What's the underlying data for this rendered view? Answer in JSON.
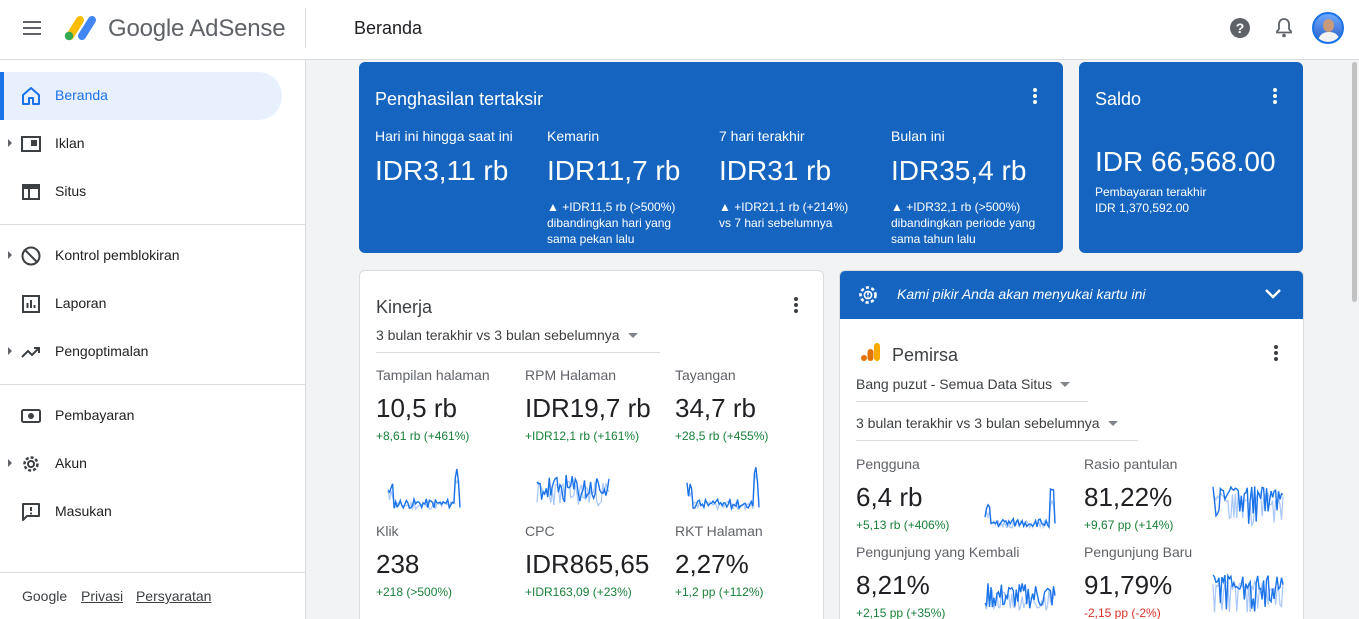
{
  "app": {
    "logo_google": "Google",
    "logo_product": "AdSense",
    "page_title": "Beranda"
  },
  "sidebar": {
    "items": [
      {
        "label": "Beranda",
        "icon": "home-icon",
        "active": true,
        "expandable": false
      },
      {
        "label": "Iklan",
        "icon": "ads-icon",
        "active": false,
        "expandable": true
      },
      {
        "label": "Situs",
        "icon": "sites-icon",
        "active": false,
        "expandable": false
      },
      {
        "label": "Kontrol pemblokiran",
        "icon": "block-icon",
        "active": false,
        "expandable": true
      },
      {
        "label": "Laporan",
        "icon": "reports-icon",
        "active": false,
        "expandable": false
      },
      {
        "label": "Pengoptimalan",
        "icon": "trending-icon",
        "active": false,
        "expandable": true
      },
      {
        "label": "Pembayaran",
        "icon": "payments-icon",
        "active": false,
        "expandable": false
      },
      {
        "label": "Akun",
        "icon": "gear-icon",
        "active": false,
        "expandable": true
      },
      {
        "label": "Masukan",
        "icon": "feedback-icon",
        "active": false,
        "expandable": false
      }
    ],
    "footer": {
      "brand": "Google",
      "privacy": "Privasi",
      "terms": "Persyaratan"
    }
  },
  "estimated": {
    "title": "Penghasilan tertaksir",
    "columns": [
      {
        "label": "Hari ini hingga saat ini",
        "value": "IDR3,11 rb",
        "change_line1": "",
        "change_line2": "",
        "change_line3": ""
      },
      {
        "label": "Kemarin",
        "value": "IDR11,7 rb",
        "change_line1": "▲ +IDR11,5 rb (>500%)",
        "change_line2": "dibandingkan hari yang",
        "change_line3": "sama pekan lalu"
      },
      {
        "label": "7 hari terakhir",
        "value": "IDR31 rb",
        "change_line1": "▲ +IDR21,1 rb (+214%)",
        "change_line2": "vs 7 hari sebelumnya",
        "change_line3": ""
      },
      {
        "label": "Bulan ini",
        "value": "IDR35,4 rb",
        "change_line1": "▲ +IDR32,1 rb (>500%)",
        "change_line2": "dibandingkan periode yang",
        "change_line3": "sama tahun lalu"
      }
    ]
  },
  "balance": {
    "title": "Saldo",
    "value": "IDR 66,568.00",
    "last_payment_label": "Pembayaran terakhir",
    "last_payment_value": "IDR 1,370,592.00"
  },
  "performance": {
    "title": "Kinerja",
    "range": "3 bulan terakhir vs 3 bulan sebelumnya",
    "metrics": [
      {
        "label": "Tampilan halaman",
        "value": "10,5 rb",
        "change": "+8,61 rb (+461%)"
      },
      {
        "label": "RPM Halaman",
        "value": "IDR19,7 rb",
        "change": "+IDR12,1 rb (+161%)"
      },
      {
        "label": "Tayangan",
        "value": "34,7 rb",
        "change": "+28,5 rb (+455%)"
      },
      {
        "label": "Klik",
        "value": "238",
        "change": "+218 (>500%)"
      },
      {
        "label": "CPC",
        "value": "IDR865,65",
        "change": "+IDR163,09 (+23%)"
      },
      {
        "label": "RKT Halaman",
        "value": "2,27%",
        "change": "+1,2 pp (+112%)"
      }
    ]
  },
  "suggestion": {
    "banner": "Kami pikir Anda akan menyukai kartu ini",
    "card_title": "Pemirsa",
    "property": "Bang puzut - Semua Data Situs",
    "range": "3 bulan terakhir vs 3 bulan sebelumnya",
    "metrics": [
      {
        "label": "Pengguna",
        "value": "6,4 rb",
        "change": "+5,13 rb (+406%)",
        "trend": "up"
      },
      {
        "label": "Rasio pantulan",
        "value": "81,22%",
        "change": "+9,67 pp (+14%)",
        "trend": "up"
      },
      {
        "label": "Pengunjung yang Kembali",
        "value": "8,21%",
        "change": "+2,15 pp (+35%)",
        "trend": "up"
      },
      {
        "label": "Pengunjung Baru",
        "value": "91,79%",
        "change": "-2,15 pp (-2%)",
        "trend": "down"
      }
    ]
  },
  "colors": {
    "accent": "#1a73e8",
    "card_blue": "#1565c0",
    "positive": "#188038",
    "negative": "#d93025",
    "spark_dark": "#1a73e8",
    "spark_light": "#a8c7fa"
  }
}
